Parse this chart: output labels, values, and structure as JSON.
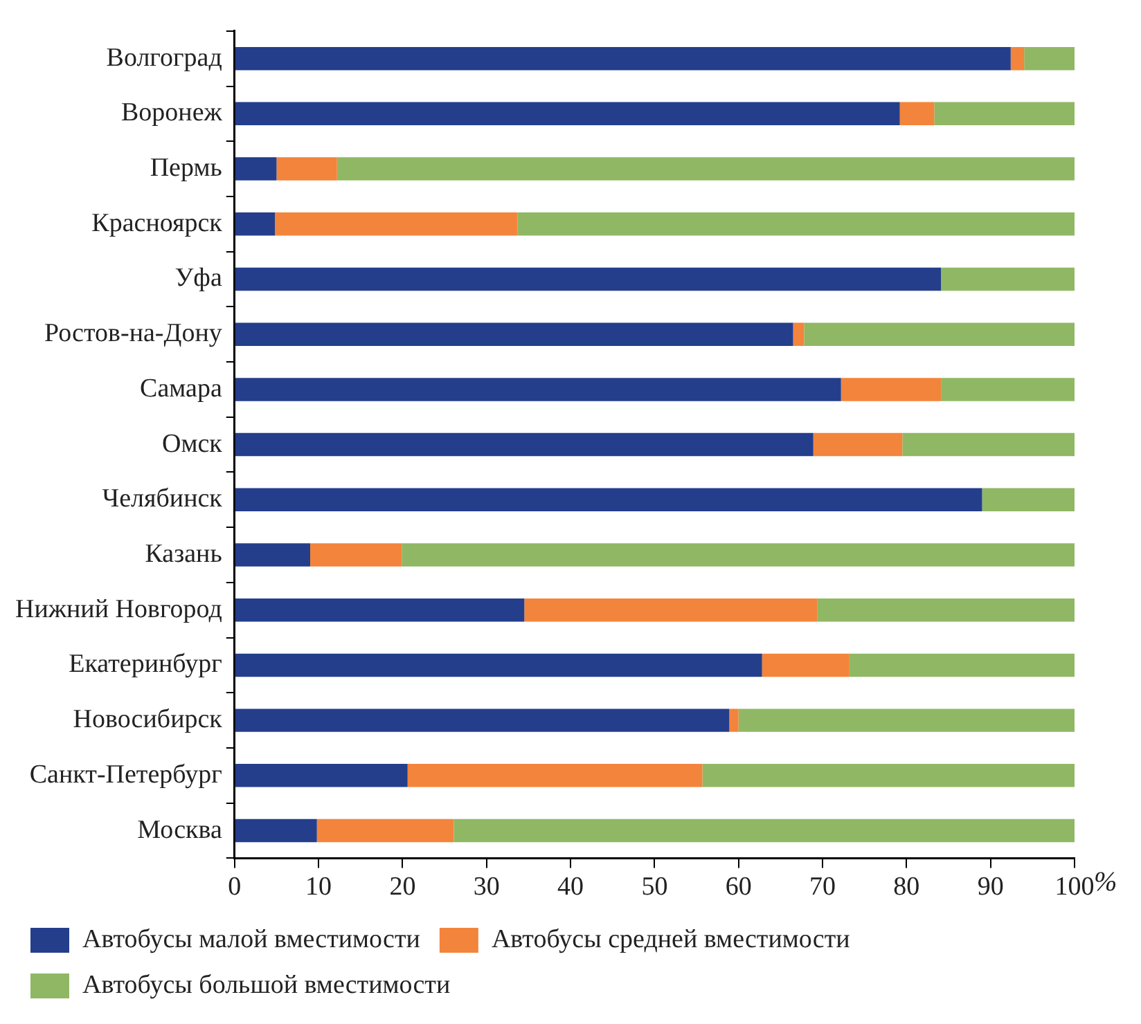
{
  "chart_data": {
    "type": "bar",
    "orientation": "horizontal",
    "stacked": true,
    "xlabel": "%",
    "categories": [
      "Волгоград",
      "Воронеж",
      "Пермь",
      "Красноярск",
      "Уфа",
      "Ростов-на-Дону",
      "Самара",
      "Омск",
      "Челябинск",
      "Казань",
      "Нижний Новгород",
      "Екатеринбург",
      "Новосибирск",
      "Санкт-Петербург",
      "Москва"
    ],
    "series": [
      {
        "name": "Автобусы малой вместимости",
        "color": "#243e8c",
        "values": [
          92.4,
          79.2,
          5.0,
          4.8,
          84.1,
          66.5,
          72.2,
          68.9,
          89.0,
          9.0,
          34.5,
          62.8,
          58.9,
          20.6,
          9.8
        ]
      },
      {
        "name": "Автобусы средней вместимости",
        "color": "#f3843b",
        "values": [
          1.6,
          4.1,
          7.2,
          28.9,
          0,
          1.3,
          11.9,
          10.6,
          0,
          10.9,
          34.9,
          10.4,
          1.1,
          35.1,
          16.3
        ]
      },
      {
        "name": "Автобусы большой вместимости",
        "color": "#90b864",
        "values": [
          6.0,
          16.7,
          87.8,
          66.3,
          15.9,
          32.2,
          15.9,
          20.5,
          11.0,
          80.1,
          30.6,
          26.8,
          40.0,
          44.3,
          73.9
        ]
      }
    ],
    "xlim": [
      0,
      100
    ],
    "xticks": [
      0,
      10,
      20,
      30,
      40,
      50,
      60,
      70,
      80,
      90,
      100
    ],
    "grid": false,
    "legend": "bottom"
  }
}
